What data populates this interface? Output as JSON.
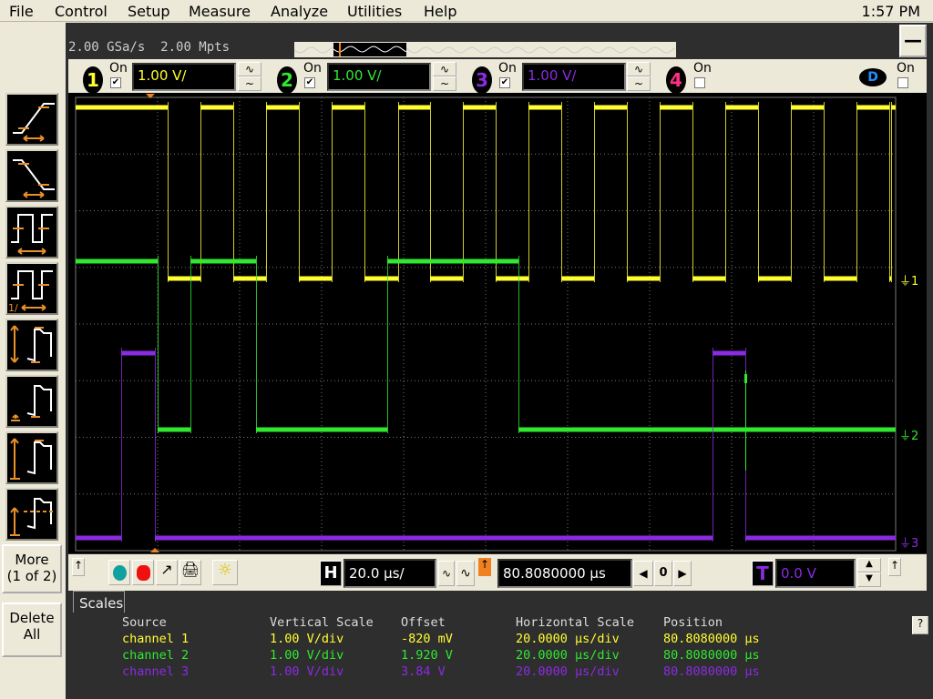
{
  "menu": [
    "File",
    "Control",
    "Setup",
    "Measure",
    "Analyze",
    "Utilities",
    "Help"
  ],
  "clock": "1:57 PM",
  "acquisition": {
    "sample_rate": "2.00 GSa/s",
    "memory_depth": "2.00 Mpts"
  },
  "minimize_label": "—",
  "channels": [
    {
      "num": "1",
      "on_label": "On",
      "checked": true,
      "scale": "1.00 V/",
      "color": "#ffff30"
    },
    {
      "num": "2",
      "on_label": "On",
      "checked": true,
      "scale": "1.00 V/",
      "color": "#30e830"
    },
    {
      "num": "3",
      "on_label": "On",
      "checked": true,
      "scale": "1.00 V/",
      "color": "#8a2be2"
    },
    {
      "num": "4",
      "on_label": "On",
      "checked": false,
      "scale": "",
      "color": "#ff3080"
    }
  ],
  "digital": {
    "label": "D",
    "on_label": "On",
    "checked": false,
    "color": "#2090ff"
  },
  "left_tools": [
    "rise-time",
    "fall-time",
    "period",
    "frequency",
    "vpp",
    "vmin",
    "vmax",
    "vavg"
  ],
  "left_buttons": {
    "more": "More\n(1 of 2)",
    "more_l1": "More",
    "more_l2": "(1 of 2)",
    "delete_l1": "Delete",
    "delete_l2": "All"
  },
  "markers": {
    "ch1": "1",
    "ch2": "2",
    "ch3": "3"
  },
  "controls": {
    "horizontal_label": "H",
    "time_scale": "20.0 µs/",
    "position": "80.8080000 µs",
    "zero": "0",
    "trigger_label": "T",
    "trigger_level": "0.0 V"
  },
  "scales_tab": "Scales",
  "table": {
    "headers": [
      "Source",
      "Vertical Scale",
      "Offset",
      "Horizontal Scale",
      "Position"
    ],
    "rows": [
      [
        "channel 1",
        "1.00 V/div",
        "-820 mV",
        "20.0000 µs/div",
        "80.8080000 µs"
      ],
      [
        "channel 2",
        "1.00 V/div",
        "1.920 V",
        "20.0000 µs/div",
        "80.8080000 µs"
      ],
      [
        "channel 3",
        "1.00 V/div",
        "3.84 V",
        "20.0000 µs/div",
        "80.8080000 µs"
      ]
    ]
  },
  "help_label": "?"
}
